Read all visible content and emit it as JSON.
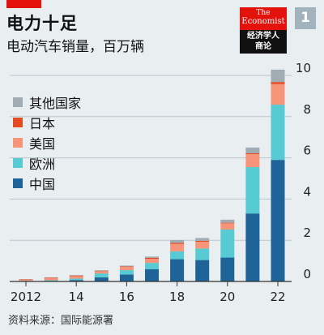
{
  "header": {
    "title": "电力十足",
    "subtitle": "电动汽车销量，百万辆",
    "figure_number": "1"
  },
  "logo": {
    "line1": "The",
    "line2": "Economist",
    "line3": "经济学人",
    "line4": "商论"
  },
  "colors": {
    "background": "#e9eef0",
    "brand_red": "#e3120b",
    "gridline": "#b7c6cf",
    "axis": "#333333"
  },
  "legend": [
    {
      "label": "其他国家",
      "color": "#a2acb3"
    },
    {
      "label": "日本",
      "color": "#e54b22"
    },
    {
      "label": "美国",
      "color": "#f7957a"
    },
    {
      "label": "欧洲",
      "color": "#57cbd3"
    },
    {
      "label": "中国",
      "color": "#1f6498"
    }
  ],
  "source": "资料来源：国际能源署",
  "chart_data": {
    "type": "bar",
    "stacked": true,
    "title": "电力十足",
    "subtitle": "电动汽车销量，百万辆",
    "x": [
      2012,
      2013,
      2014,
      2015,
      2016,
      2017,
      2018,
      2019,
      2020,
      2021,
      2022
    ],
    "x_tick_labels": [
      "2012",
      "14",
      "16",
      "18",
      "20",
      "22"
    ],
    "x_tick_values": [
      2012,
      2014,
      2016,
      2018,
      2020,
      2022
    ],
    "ylim": [
      0,
      10
    ],
    "y_ticks": [
      0,
      2,
      4,
      6,
      8,
      10
    ],
    "y_axis_side": "right",
    "grid": true,
    "legend_position": "left",
    "series": [
      {
        "name": "中国",
        "color": "#1f6498",
        "values": [
          0.01,
          0.02,
          0.07,
          0.2,
          0.34,
          0.6,
          1.08,
          1.04,
          1.16,
          3.3,
          5.9
        ]
      },
      {
        "name": "欧洲",
        "color": "#57cbd3",
        "values": [
          0.02,
          0.04,
          0.07,
          0.19,
          0.21,
          0.3,
          0.38,
          0.56,
          1.36,
          2.25,
          2.68
        ]
      },
      {
        "name": "美国",
        "color": "#f7957a",
        "values": [
          0.05,
          0.1,
          0.12,
          0.11,
          0.16,
          0.2,
          0.36,
          0.33,
          0.3,
          0.63,
          1.0
        ]
      },
      {
        "name": "日本",
        "color": "#e54b22",
        "values": [
          0.02,
          0.03,
          0.03,
          0.02,
          0.02,
          0.05,
          0.05,
          0.04,
          0.03,
          0.04,
          0.1
        ]
      },
      {
        "name": "其他国家",
        "color": "#a2acb3",
        "values": [
          0.01,
          0.01,
          0.02,
          0.03,
          0.04,
          0.06,
          0.14,
          0.14,
          0.15,
          0.28,
          0.6
        ]
      }
    ]
  }
}
